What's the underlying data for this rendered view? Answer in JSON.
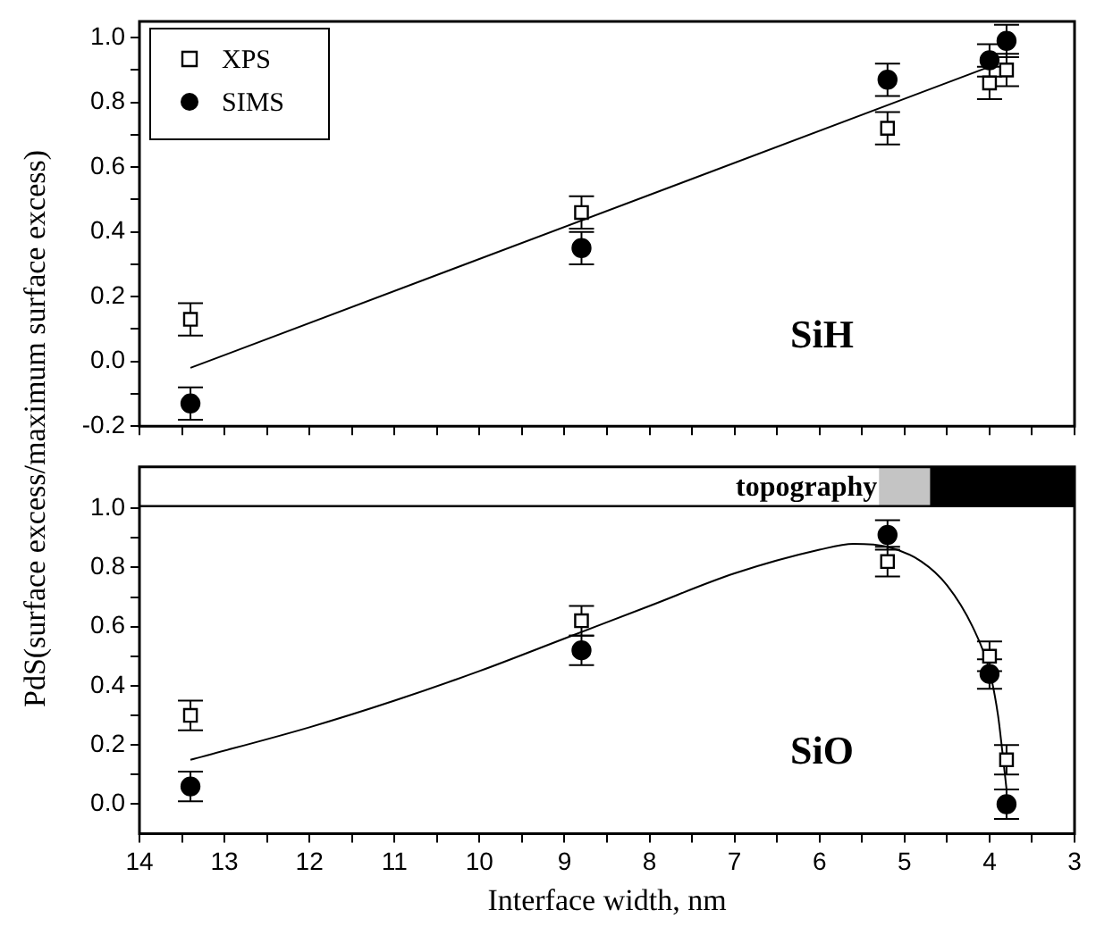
{
  "chart_data": [
    {
      "type": "scatter",
      "ylabel": "PdS(surface excess/maximum surface excess)",
      "annotations": [
        "SiH"
      ],
      "legend": "top left",
      "tick_labels": "y",
      "xlim": [
        14,
        3
      ],
      "xticks": [
        14,
        {
          "value": 13.5,
          "label": null
        },
        13,
        {
          "value": 12.5,
          "label": null
        },
        12,
        {
          "value": 11.5,
          "label": null
        },
        11,
        {
          "value": 10.5,
          "label": null
        },
        10,
        {
          "value": 9.5,
          "label": null
        },
        9,
        {
          "value": 8.5,
          "label": null
        },
        8,
        {
          "value": 7.5,
          "label": null
        },
        7,
        {
          "value": 6.5,
          "label": null
        },
        6,
        {
          "value": 5.5,
          "label": null
        },
        5,
        {
          "value": 4.5,
          "label": null
        },
        4,
        {
          "value": 3.5,
          "label": null
        },
        3
      ],
      "ylim": [
        -0.2,
        1.05
      ],
      "yticks": [
        {
          "value": -0.2,
          "label": "-0.2"
        },
        {
          "value": -0.1,
          "label": null
        },
        {
          "value": 0,
          "label": "0.0"
        },
        {
          "value": 0.1,
          "label": null
        },
        {
          "value": 0.2,
          "label": "0.2"
        },
        {
          "value": 0.3,
          "label": null
        },
        {
          "value": 0.4,
          "label": "0.4"
        },
        {
          "value": 0.5,
          "label": null
        },
        {
          "value": 0.6,
          "label": "0.6"
        },
        {
          "value": 0.7,
          "label": null
        },
        {
          "value": 0.8,
          "label": "0.8"
        },
        {
          "value": 0.9,
          "label": null
        },
        {
          "value": 1,
          "label": "1.0"
        }
      ],
      "series": [
        {
          "name": "XPS",
          "type": "scatter",
          "marker": "square",
          "color": "#000000",
          "x": [
            13.4,
            8.8,
            5.2,
            4.0,
            3.8
          ],
          "values": [
            0.13,
            0.46,
            0.72,
            0.86,
            0.9
          ],
          "errors": [
            0.05,
            0.05,
            0.05,
            0.05,
            0.05
          ]
        },
        {
          "name": "SIMS",
          "type": "scatter",
          "marker": "circle",
          "color": "#000000",
          "x": [
            13.4,
            8.8,
            5.2,
            4.0,
            3.8
          ],
          "values": [
            -0.13,
            0.35,
            0.87,
            0.93,
            0.99
          ],
          "errors": [
            0.05,
            0.05,
            0.05,
            0.05,
            0.05
          ]
        },
        {
          "type": "line",
          "marker": "none",
          "color": "#000000",
          "x": [
            13.4,
            3.9
          ],
          "values": [
            -0.02,
            0.92
          ]
        }
      ]
    },
    {
      "type": "scatter",
      "xlabel": "Interface width, nm",
      "annotations": [
        "SiO"
      ],
      "xlim": [
        14,
        3
      ],
      "xticks": [
        14,
        {
          "value": 13.5,
          "label": null
        },
        13,
        {
          "value": 12.5,
          "label": null
        },
        12,
        {
          "value": 11.5,
          "label": null
        },
        11,
        {
          "value": 10.5,
          "label": null
        },
        10,
        {
          "value": 9.5,
          "label": null
        },
        9,
        {
          "value": 8.5,
          "label": null
        },
        8,
        {
          "value": 7.5,
          "label": null
        },
        7,
        {
          "value": 6.5,
          "label": null
        },
        6,
        {
          "value": 5.5,
          "label": null
        },
        5,
        {
          "value": 4.5,
          "label": null
        },
        4,
        {
          "value": 3.5,
          "label": null
        },
        3
      ],
      "ylim": [
        -0.1,
        1.14
      ],
      "yticks": [
        {
          "value": 0,
          "label": "0.0"
        },
        {
          "value": 0.1,
          "label": null
        },
        {
          "value": 0.2,
          "label": "0.2"
        },
        {
          "value": 0.3,
          "label": null
        },
        {
          "value": 0.4,
          "label": "0.4"
        },
        {
          "value": 0.5,
          "label": null
        },
        {
          "value": 0.6,
          "label": "0.6"
        },
        {
          "value": 0.7,
          "label": null
        },
        {
          "value": 0.8,
          "label": "0.8"
        },
        {
          "value": 0.9,
          "label": null
        },
        {
          "value": 1,
          "label": "1.0"
        }
      ],
      "bands": [
        {
          "axis": "x",
          "from": 5.3,
          "to": 4.7,
          "color": "#c4c4c4",
          "label": "topography"
        },
        {
          "axis": "x",
          "from": 4.7,
          "to": 3,
          "color": "#000000"
        }
      ],
      "series": [
        {
          "type": "scatter",
          "marker": "square",
          "color": "#000000",
          "x": [
            13.4,
            8.8,
            5.2,
            4.0,
            3.8
          ],
          "values": [
            0.3,
            0.62,
            0.82,
            0.5,
            0.15
          ],
          "errors": [
            0.05,
            0.05,
            0.05,
            0.05,
            0.05
          ]
        },
        {
          "type": "scatter",
          "marker": "circle",
          "color": "#000000",
          "x": [
            13.4,
            8.8,
            5.2,
            4.0,
            3.8
          ],
          "values": [
            0.06,
            0.52,
            0.91,
            0.44,
            0.0
          ],
          "errors": [
            0.05,
            0.05,
            0.05,
            0.05,
            0.05
          ]
        },
        {
          "type": "line",
          "marker": "none",
          "color": "#000000",
          "x": [
            13.4,
            12,
            11,
            10,
            9,
            8,
            7,
            6,
            5.6,
            5.2,
            4.8,
            4.5,
            4.2,
            4.0,
            3.9,
            3.85,
            3.8
          ],
          "values": [
            0.15,
            0.26,
            0.35,
            0.45,
            0.56,
            0.67,
            0.78,
            0.86,
            0.88,
            0.87,
            0.82,
            0.74,
            0.6,
            0.45,
            0.3,
            0.18,
            0.05
          ]
        }
      ]
    }
  ]
}
